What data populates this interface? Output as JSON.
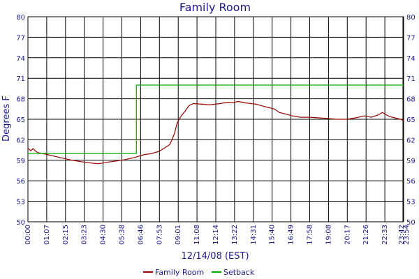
{
  "chart_data": {
    "type": "line",
    "title": "Family Room",
    "xlabel": "12/14/08 (EST)",
    "ylabel": "Degrees F",
    "x_unit": "time of day (HH:MM)",
    "xlim": [
      "00:00",
      "23:54"
    ],
    "ylim": [
      50,
      80
    ],
    "y_ticks": [
      50,
      53,
      56,
      59,
      62,
      65,
      68,
      71,
      74,
      77,
      80
    ],
    "x_tick_labels": [
      "00:00",
      "01:07",
      "02:15",
      "03:23",
      "04:30",
      "05:38",
      "06:46",
      "07:53",
      "09:01",
      "11:08",
      "12:14",
      "13:22",
      "14:31",
      "15:40",
      "16:49",
      "17:58",
      "19:08",
      "20:17",
      "21:26",
      "22:33",
      "23:42",
      "23:54"
    ],
    "grid": true,
    "legend_position": "bottom",
    "series": [
      {
        "name": "Family Room",
        "color": "#990000",
        "x": [
          "00:00",
          "00:10",
          "00:20",
          "00:30",
          "00:40",
          "01:07",
          "01:40",
          "02:15",
          "02:50",
          "03:23",
          "04:00",
          "04:30",
          "05:00",
          "05:38",
          "06:10",
          "06:46",
          "07:20",
          "07:53",
          "08:20",
          "08:45",
          "09:01",
          "09:10",
          "09:20",
          "09:30",
          "09:45",
          "10:00",
          "10:15",
          "10:30",
          "11:08",
          "11:30",
          "12:14",
          "12:45",
          "13:00",
          "13:22",
          "13:50",
          "14:31",
          "15:00",
          "15:40",
          "16:00",
          "16:49",
          "17:20",
          "17:58",
          "18:30",
          "19:08",
          "19:40",
          "20:17",
          "20:50",
          "21:26",
          "21:50",
          "22:15",
          "22:33",
          "23:00",
          "23:42",
          "23:54"
        ],
        "y": [
          60.8,
          60.4,
          60.7,
          60.3,
          60.1,
          59.9,
          59.6,
          59.3,
          59.0,
          58.8,
          58.6,
          58.5,
          58.7,
          58.9,
          59.1,
          59.4,
          59.8,
          60.0,
          60.3,
          60.9,
          61.3,
          62.0,
          63.0,
          64.5,
          65.5,
          66.2,
          67.0,
          67.3,
          67.2,
          67.1,
          67.3,
          67.5,
          67.4,
          67.6,
          67.4,
          67.2,
          66.9,
          66.5,
          66.0,
          65.5,
          65.3,
          65.3,
          65.2,
          65.1,
          65.0,
          65.0,
          65.2,
          65.5,
          65.3,
          65.6,
          66.0,
          65.4,
          65.0,
          64.8
        ]
      },
      {
        "name": "Setback",
        "color": "#00aa00",
        "x": [
          "00:00",
          "06:54",
          "06:54",
          "23:54"
        ],
        "y": [
          60,
          60,
          70,
          70
        ]
      }
    ]
  }
}
